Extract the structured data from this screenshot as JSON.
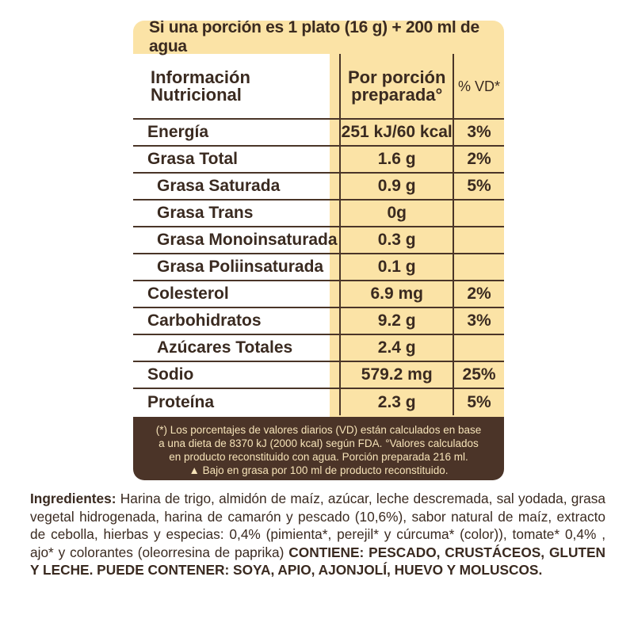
{
  "panel": {
    "serving_line": "Si una porción es 1 plato (16 g) + 200 ml de agua",
    "headers": {
      "info_line1": "Información",
      "info_line2": "Nutricional",
      "per_line1": "Por porción",
      "per_line2": "preparada°",
      "vd": "% VD*"
    },
    "rows": [
      {
        "name": "Energía",
        "value": "251 kJ/60 kcal",
        "vd": "3%",
        "sub": false
      },
      {
        "name": "Grasa Total",
        "value": "1.6 g",
        "vd": "2%",
        "sub": false
      },
      {
        "name": "Grasa Saturada",
        "value": "0.9 g",
        "vd": "5%",
        "sub": true
      },
      {
        "name": "Grasa Trans",
        "value": "0g",
        "vd": "",
        "sub": true
      },
      {
        "name": "Grasa Monoinsaturada",
        "value": "0.3 g",
        "vd": "",
        "sub": true
      },
      {
        "name": "Grasa Poliinsaturada",
        "value": "0.1 g",
        "vd": "",
        "sub": true
      },
      {
        "name": "Colesterol",
        "value": "6.9 mg",
        "vd": "2%",
        "sub": false
      },
      {
        "name": "Carbohidratos",
        "value": "9.2 g",
        "vd": "3%",
        "sub": false
      },
      {
        "name": "Azúcares Totales",
        "value": "2.4 g",
        "vd": "",
        "sub": true
      },
      {
        "name": "Sodio",
        "value": "579.2 mg",
        "vd": "25%",
        "sub": false
      },
      {
        "name": "Proteína",
        "value": "2.3 g",
        "vd": "5%",
        "sub": false
      }
    ],
    "footnote_lines": [
      "(*) Los porcentajes de valores diarios (VD) están calculados en base",
      "a una dieta de 8370 kJ (2000 kcal) según FDA. °Valores calculados",
      "en producto reconstituido con agua. Porción preparada 216 ml.",
      "▲ Bajo en grasa por 100 ml de producto reconstituido."
    ]
  },
  "ingredients": {
    "label": "Ingredientes:",
    "text": " Harina de trigo, almidón de maíz, azúcar, leche descremada, sal yodada, grasa vegetal hidrogenada, harina de camarón  y pescado (10,6%), sabor natural de maíz, extracto de cebolla, hierbas y especias: 0,4% (pimienta*, perejil* y cúrcuma* (color)), tomate* 0,4% , ajo* y colorantes (oleorresina de paprika) ",
    "contains": "CONTIENE: PESCADO, CRUSTÁCEOS, GLUTEN Y LECHE.  PUEDE CONTENER: SOYA, APIO, AJONJOLÍ, HUEVO Y MOLUSCOS."
  }
}
